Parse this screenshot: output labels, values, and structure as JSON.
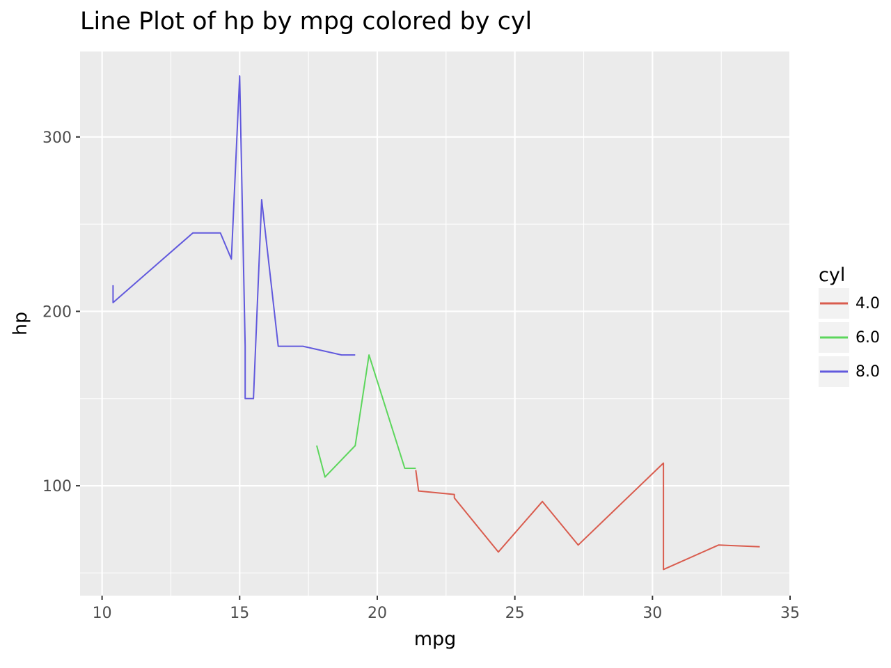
{
  "chart_data": {
    "type": "line",
    "title": "Line Plot of hp by mpg colored by cyl",
    "xlabel": "mpg",
    "ylabel": "hp",
    "xlim": [
      9.2,
      35.0
    ],
    "ylim": [
      37.0,
      349.0
    ],
    "x_ticks": [
      10,
      15,
      20,
      25,
      30,
      35
    ],
    "x_tick_labels": [
      "10",
      "15",
      "20",
      "25",
      "30",
      "35"
    ],
    "y_ticks": [
      100,
      200,
      300
    ],
    "y_tick_labels": [
      "100",
      "200",
      "300"
    ],
    "x_minor_ticks": [
      12.5,
      17.5,
      22.5,
      27.5,
      32.5
    ],
    "y_minor_ticks": [
      50,
      150,
      250
    ],
    "grid": true,
    "legend": {
      "title": "cyl",
      "position": "right"
    },
    "series": [
      {
        "name": "4.0",
        "color": "#d95c4e",
        "points": [
          [
            21.4,
            109
          ],
          [
            21.5,
            97
          ],
          [
            22.8,
            95
          ],
          [
            22.8,
            93
          ],
          [
            24.4,
            62
          ],
          [
            26.0,
            91
          ],
          [
            27.3,
            66
          ],
          [
            30.4,
            113
          ],
          [
            30.4,
            52
          ],
          [
            32.4,
            66
          ],
          [
            33.9,
            65
          ]
        ]
      },
      {
        "name": "6.0",
        "color": "#5cd65c",
        "points": [
          [
            17.8,
            123
          ],
          [
            18.1,
            105
          ],
          [
            19.2,
            123
          ],
          [
            19.7,
            175
          ],
          [
            21.0,
            110
          ],
          [
            21.4,
            110
          ]
        ]
      },
      {
        "name": "8.0",
        "color": "#6159dd",
        "points": [
          [
            10.4,
            215
          ],
          [
            10.4,
            205
          ],
          [
            13.3,
            245
          ],
          [
            14.3,
            245
          ],
          [
            14.7,
            230
          ],
          [
            15.0,
            335
          ],
          [
            15.2,
            180
          ],
          [
            15.2,
            150
          ],
          [
            15.5,
            150
          ],
          [
            15.8,
            264
          ],
          [
            16.4,
            180
          ],
          [
            17.3,
            180
          ],
          [
            18.7,
            175
          ],
          [
            19.2,
            175
          ]
        ]
      }
    ]
  }
}
